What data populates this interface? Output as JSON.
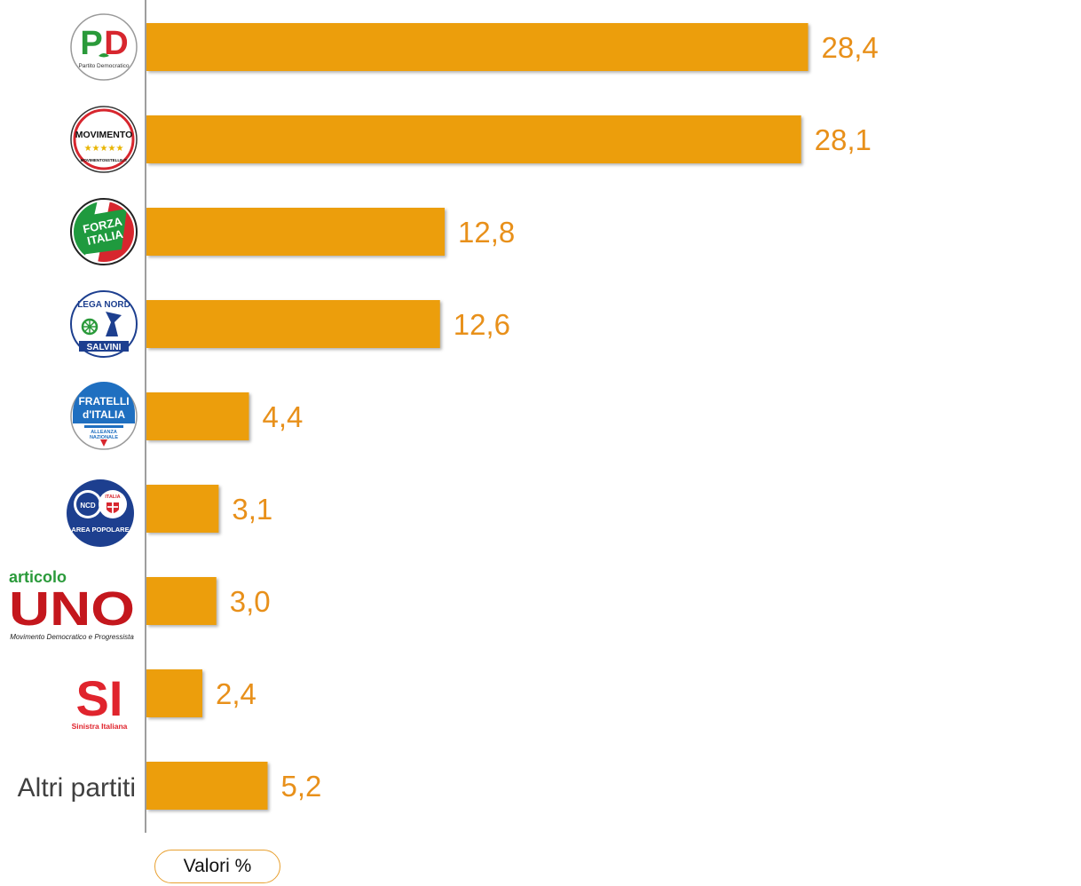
{
  "chart_data": {
    "type": "bar",
    "orientation": "horizontal",
    "categories": [
      "PD",
      "Movimento 5 Stelle",
      "Forza Italia",
      "Lega Nord",
      "Fratelli d'Italia",
      "Area Popolare",
      "Articolo Uno",
      "Sinistra Italiana",
      "Altri partiti"
    ],
    "values": [
      28.4,
      28.1,
      12.8,
      12.6,
      4.4,
      3.1,
      3.0,
      2.4,
      5.2
    ],
    "value_labels": [
      "28,4",
      "28,1",
      "12,8",
      "12,6",
      "4,4",
      "3,1",
      "3,0",
      "2,4",
      "5,2"
    ],
    "category_label_text": "Altri partiti",
    "units_label": "Valori %",
    "bar_color": "#EC9E0C",
    "value_label_color": "#E8901A",
    "xlim": [
      0,
      30
    ]
  },
  "logos": {
    "pd": {
      "letters_p": "P",
      "letters_d": "D",
      "caption": "Partito Democratico",
      "icon": "pd-logo-icon"
    },
    "m5s": {
      "text": "MOVIMENTO",
      "stars": "★★★★★",
      "caption": "MOVIMENTO5STELLE.IT",
      "icon": "m5s-logo-icon"
    },
    "fi": {
      "text1": "FORZA",
      "text2": "ITALIA",
      "icon": "forza-italia-logo-icon"
    },
    "lega": {
      "text_top": "LEGA NORD",
      "text_bottom": "SALVINI",
      "icon": "lega-nord-logo-icon"
    },
    "fdi": {
      "text1": "FRATELLI",
      "text2": "d'ITALIA",
      "text3": "ALLEANZA",
      "text4": "NAZIONALE",
      "icon": "fratelli-italia-logo-icon"
    },
    "ap": {
      "text_ncd": "NCD",
      "text_italia": "ITALIA",
      "text_bottom": "AREA POPOLARE",
      "icon": "area-popolare-logo-icon"
    },
    "uno": {
      "text_top": "articolo",
      "text_main": "UNO",
      "caption": "Movimento Democratico e Progressista",
      "icon": "articolo-uno-logo-icon"
    },
    "si": {
      "text_main": "SI",
      "caption": "Sinistra Italiana",
      "icon": "sinistra-italiana-logo-icon"
    }
  }
}
